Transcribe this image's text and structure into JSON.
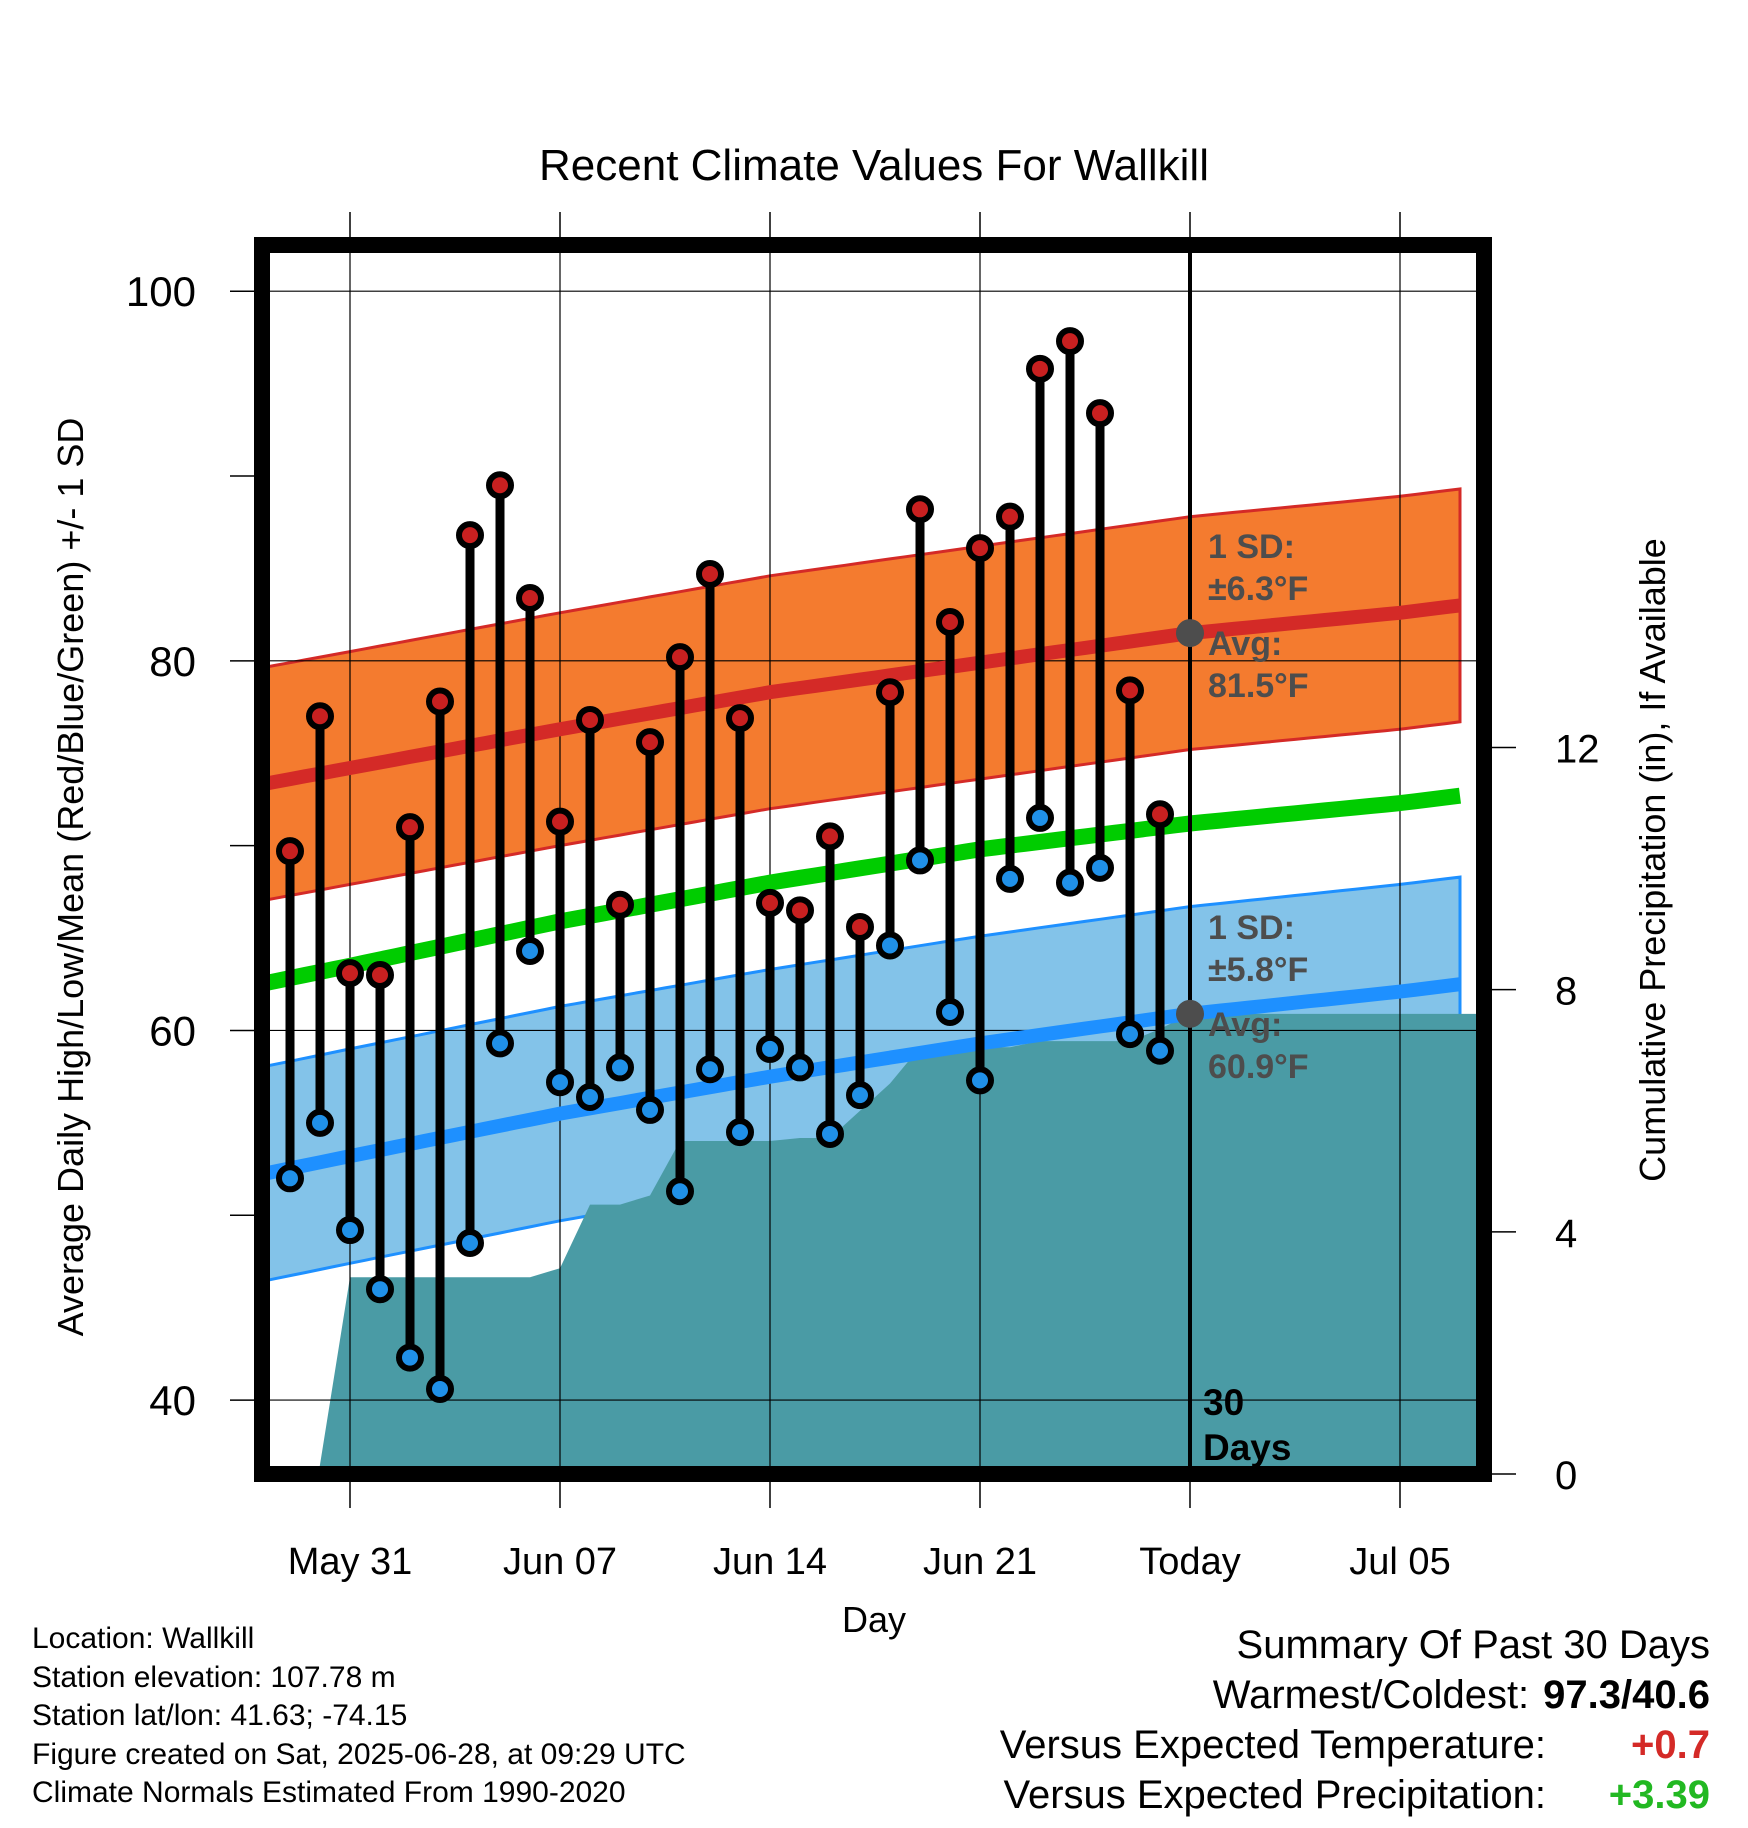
{
  "chart_data": {
    "type": "line",
    "title": "Recent Climate Values For Wallkill",
    "xlabel": "Day",
    "ylabel_left": "Average Daily High/Low/Mean (Red/Blue/Green) +/- 1 SD",
    "ylabel_right": "Cumulative Precipitation (in), If Available",
    "x_ticks": [
      "May 31",
      "Jun 07",
      "Jun 14",
      "Jun 21",
      "Today",
      "Jul 05"
    ],
    "x_tick_days": [
      0,
      7,
      14,
      21,
      28,
      35
    ],
    "xlim": [
      -3.2,
      37.6
    ],
    "ylim_left": [
      36,
      102.5
    ],
    "y_ticks_left": [
      40,
      60,
      80,
      100
    ],
    "ylim_right": [
      0,
      20.3
    ],
    "y_ticks_right": [
      0,
      4,
      8,
      12
    ],
    "today_day": 28,
    "today_label": "30\nDays",
    "high_annotation": {
      "sd_label": "1 SD:",
      "sd_value": "±6.3°F",
      "avg_label": "Avg:",
      "avg_value": "81.5°F"
    },
    "low_annotation": {
      "sd_label": "1 SD:",
      "sd_value": "±5.8°F",
      "avg_label": "Avg:",
      "avg_value": "60.9°F"
    },
    "normal_high": {
      "x": [
        -3,
        0,
        7,
        14,
        21,
        28,
        35,
        37
      ],
      "values": [
        73.3,
        74.2,
        76.3,
        78.3,
        79.9,
        81.5,
        82.6,
        83.0
      ],
      "sd": 6.3
    },
    "normal_low": {
      "x": [
        -3,
        0,
        7,
        14,
        21,
        28,
        35,
        37
      ],
      "values": [
        52.2,
        53.2,
        55.5,
        57.5,
        59.3,
        60.9,
        62.1,
        62.5
      ],
      "sd": 5.8
    },
    "normal_mean": {
      "x": [
        -3,
        0,
        7,
        14,
        21,
        28,
        35,
        37
      ],
      "values": [
        62.5,
        63.5,
        65.9,
        68.0,
        69.8,
        71.2,
        72.3,
        72.7
      ]
    },
    "days": [
      -2,
      -1,
      0,
      1,
      2,
      3,
      4,
      5,
      6,
      7,
      8,
      9,
      10,
      11,
      12,
      13,
      14,
      15,
      16,
      17,
      18,
      19,
      20,
      21,
      22,
      23,
      24,
      25,
      26,
      27
    ],
    "highs": [
      69.7,
      77.0,
      63.1,
      63.0,
      71.0,
      77.8,
      86.8,
      89.5,
      83.4,
      71.3,
      76.8,
      66.8,
      75.6,
      80.2,
      84.7,
      76.9,
      66.9,
      66.5,
      70.5,
      65.6,
      78.3,
      88.2,
      82.1,
      86.1,
      87.8,
      95.8,
      97.3,
      93.4,
      78.4,
      71.7
    ],
    "lows": [
      52.0,
      55.0,
      49.2,
      46.0,
      42.3,
      40.6,
      48.5,
      59.3,
      64.3,
      57.2,
      56.4,
      58.0,
      55.7,
      51.3,
      57.9,
      54.5,
      59.0,
      58.0,
      54.4,
      56.5,
      64.6,
      69.2,
      61.0,
      57.3,
      68.2,
      71.5,
      68.0,
      68.8,
      59.8,
      58.9
    ],
    "precip_cumulative": {
      "x": [
        -1.05,
        0,
        1,
        2,
        3,
        4,
        5,
        6,
        7,
        8,
        9,
        10,
        11,
        12,
        13,
        14,
        15,
        16,
        17,
        18,
        19,
        20,
        21,
        22,
        23,
        24,
        25,
        26,
        27,
        28,
        37.6
      ],
      "values": [
        0,
        3.25,
        3.25,
        3.25,
        3.25,
        3.25,
        3.25,
        3.25,
        3.4,
        4.45,
        4.45,
        4.6,
        5.5,
        5.5,
        5.5,
        5.5,
        5.55,
        5.55,
        6.0,
        6.45,
        7.05,
        7.05,
        7.05,
        7.05,
        7.15,
        7.15,
        7.15,
        7.15,
        7.35,
        7.6,
        7.6
      ]
    }
  },
  "info": {
    "location": "Location: Wallkill",
    "elevation": "Station elevation: 107.78 m",
    "latlon": "Station lat/lon: 41.63; -74.15",
    "created": "Figure created on Sat, 2025-06-28, at 09:29 UTC",
    "normals": "Climate Normals Estimated From 1990-2020"
  },
  "summary": {
    "title": "Summary Of Past 30 Days",
    "warm_cold_label": "Warmest/Coldest:",
    "warm_cold_value": "97.3/40.6",
    "temp_label": "Versus Expected Temperature:",
    "temp_value": "+0.7",
    "precip_label": "Versus Expected Precipitation:",
    "precip_value": "+3.39"
  },
  "colors": {
    "high_band": "#f47b2f",
    "high_line": "#d42a27",
    "low_band": "#83c3e9",
    "low_line": "#1e90ff",
    "mean_line": "#00cc00",
    "precip": "#4a9ba5",
    "high_marker": "#c82020",
    "low_marker": "#2090e8",
    "annotation": "#4d4d4d",
    "temp_positive": "#d42a27",
    "precip_positive": "#22b822"
  }
}
